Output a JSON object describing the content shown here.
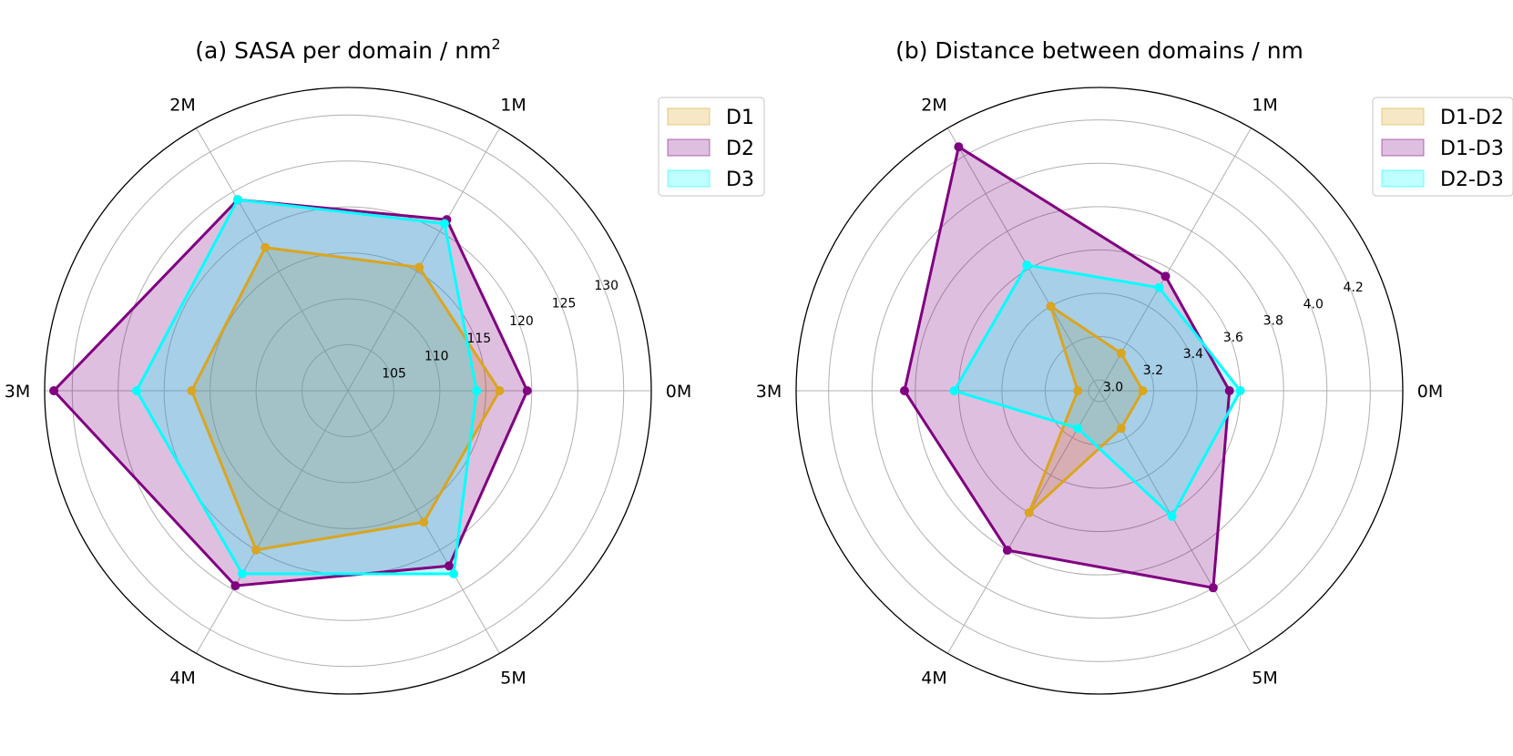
{
  "chart_data": [
    {
      "type": "radar",
      "title_main": "(a) SASA per domain / nm",
      "title_sup": "2",
      "categories": [
        "0M",
        "1M",
        "2M",
        "3M",
        "4M",
        "5M"
      ],
      "rlim": [
        100,
        133
      ],
      "rticks": [
        105,
        110,
        115,
        120,
        125,
        130
      ],
      "series": [
        {
          "name": "D1",
          "color": "#DAA520",
          "values": [
            116.5,
            115.5,
            118.0,
            117.0,
            120.0,
            116.5
          ]
        },
        {
          "name": "D2",
          "color": "#800080",
          "values": [
            119.5,
            121.5,
            124.0,
            132.0,
            124.5,
            122.0
          ]
        },
        {
          "name": "D3",
          "color": "#00FFFF",
          "values": [
            114.0,
            121.0,
            124.0,
            123.0,
            123.0,
            123.0
          ]
        }
      ],
      "legend": "top-right"
    },
    {
      "type": "radar",
      "title_main": "(b) Distance between domains / nm",
      "title_sup": "",
      "categories": [
        "0M",
        "1M",
        "2M",
        "3M",
        "4M",
        "5M"
      ],
      "rlim": [
        2.95,
        4.35
      ],
      "rticks": [
        3.0,
        3.2,
        3.4,
        3.6,
        3.8,
        4.0,
        4.2
      ],
      "rtick_labels": [
        "3.0",
        "3.2",
        "3.4",
        "3.6",
        "3.8",
        "4.0",
        "4.2"
      ],
      "series": [
        {
          "name": "D1-D2",
          "color": "#DAA520",
          "values": [
            3.15,
            3.15,
            3.4,
            3.05,
            3.6,
            3.15
          ]
        },
        {
          "name": "D1-D3",
          "color": "#800080",
          "values": [
            3.55,
            3.56,
            4.25,
            3.85,
            3.8,
            4.0
          ]
        },
        {
          "name": "D2-D3",
          "color": "#00FFFF",
          "values": [
            3.6,
            3.5,
            3.62,
            3.62,
            3.15,
            3.62
          ]
        }
      ],
      "legend": "top-right"
    }
  ]
}
